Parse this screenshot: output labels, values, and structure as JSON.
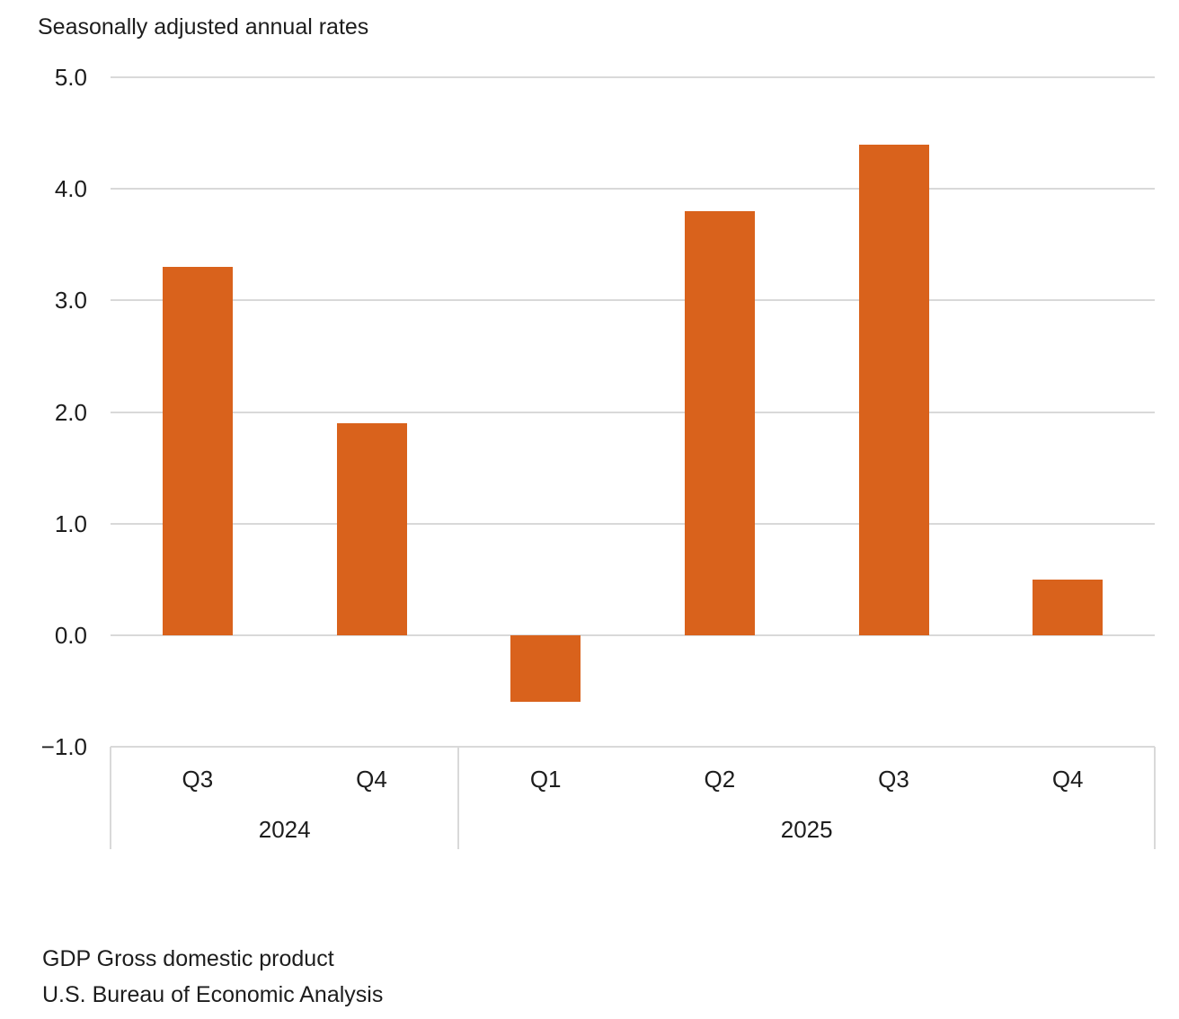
{
  "chart_data": {
    "type": "bar",
    "title": "Seasonally adjusted annual rates",
    "categories": [
      "Q3",
      "Q4",
      "Q1",
      "Q2",
      "Q3",
      "Q4"
    ],
    "values": [
      3.3,
      1.9,
      -0.6,
      3.8,
      4.4,
      0.5
    ],
    "groups": [
      {
        "label": "2024",
        "span": 2
      },
      {
        "label": "2025",
        "span": 4
      }
    ],
    "ylim": [
      -1.0,
      5.0
    ],
    "ytick_step": 1.0,
    "yticks": [
      "5.0",
      "4.0",
      "3.0",
      "2.0",
      "1.0",
      "0.0",
      "−1.0"
    ],
    "xlabel": "",
    "ylabel": "",
    "grid": true,
    "legend": false,
    "bar_color": "#d9621c",
    "grid_color": "#d9d9d9",
    "text_color": "#1d1d1d"
  },
  "footer": {
    "line1": "GDP Gross domestic product",
    "line2": "U.S. Bureau of Economic Analysis"
  }
}
